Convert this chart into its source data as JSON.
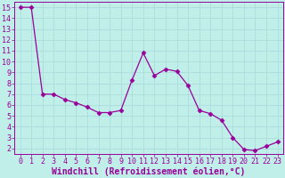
{
  "x": [
    0,
    1,
    2,
    3,
    4,
    5,
    6,
    7,
    8,
    9,
    10,
    11,
    12,
    13,
    14,
    15,
    16,
    17,
    18,
    19,
    20,
    21,
    22,
    23
  ],
  "y": [
    15,
    15,
    7,
    7,
    6.5,
    6.2,
    5.8,
    5.3,
    5.3,
    5.5,
    8.3,
    10.8,
    8.7,
    9.3,
    9.1,
    7.8,
    5.5,
    5.2,
    4.6,
    3.0,
    1.9,
    1.8,
    2.2,
    2.6
  ],
  "line_color": "#990099",
  "marker": "D",
  "marker_size": 2.5,
  "bg_color": "#c0eee8",
  "grid_color": "#aadddd",
  "xlabel": "Windchill (Refroidissement éolien,°C)",
  "xlabel_color": "#990099",
  "xlabel_fontsize": 7,
  "tick_color": "#990099",
  "tick_fontsize": 6,
  "ylim": [
    1.5,
    15.5
  ],
  "xlim": [
    -0.5,
    23.5
  ],
  "yticks": [
    2,
    3,
    4,
    5,
    6,
    7,
    8,
    9,
    10,
    11,
    12,
    13,
    14,
    15
  ],
  "xticks": [
    0,
    1,
    2,
    3,
    4,
    5,
    6,
    7,
    8,
    9,
    10,
    11,
    12,
    13,
    14,
    15,
    16,
    17,
    18,
    19,
    20,
    21,
    22,
    23
  ]
}
